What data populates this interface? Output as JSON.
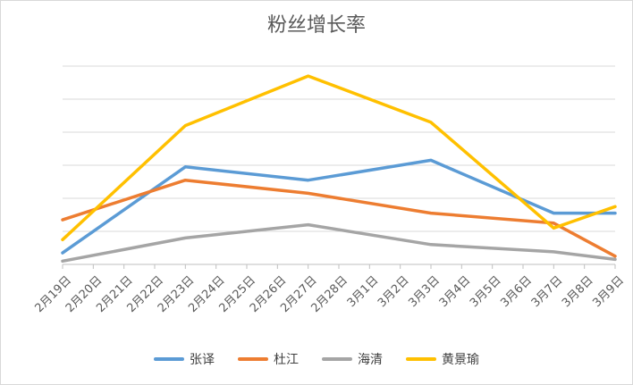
{
  "chart_data": {
    "type": "line",
    "title": "粉丝增长率",
    "categories": [
      "2月19日",
      "2月20日",
      "2月21日",
      "2月22日",
      "2月23日",
      "2月24日",
      "2月25日",
      "2月26日",
      "2月27日",
      "2月28日",
      "3月1日",
      "3月2日",
      "3月3日",
      "3月4日",
      "3月5日",
      "3月6日",
      "3月7日",
      "3月8日",
      "3月9日"
    ],
    "series": [
      {
        "name": "张译",
        "color": "#5B9BD5",
        "points": [
          [
            0,
            0.35
          ],
          [
            4,
            2.95
          ],
          [
            8,
            2.55
          ],
          [
            12,
            3.15
          ],
          [
            16,
            1.55
          ],
          [
            18,
            1.55
          ]
        ]
      },
      {
        "name": "杜江",
        "color": "#ED7D31",
        "points": [
          [
            0,
            1.35
          ],
          [
            4,
            2.55
          ],
          [
            8,
            2.15
          ],
          [
            12,
            1.55
          ],
          [
            16,
            1.25
          ],
          [
            18,
            0.25
          ]
        ]
      },
      {
        "name": "海清",
        "color": "#A5A5A5",
        "points": [
          [
            0,
            0.1
          ],
          [
            4,
            0.8
          ],
          [
            8,
            1.2
          ],
          [
            12,
            0.6
          ],
          [
            16,
            0.38
          ],
          [
            18,
            0.15
          ]
        ]
      },
      {
        "name": "黄景瑜",
        "color": "#FFC000",
        "points": [
          [
            0,
            0.75
          ],
          [
            4,
            4.2
          ],
          [
            8,
            5.7
          ],
          [
            12,
            4.3
          ],
          [
            16,
            1.1
          ],
          [
            18,
            1.75
          ]
        ]
      }
    ],
    "ylim": [
      0,
      6
    ],
    "gridlines": 6,
    "grid": true,
    "legend": "bottom"
  }
}
